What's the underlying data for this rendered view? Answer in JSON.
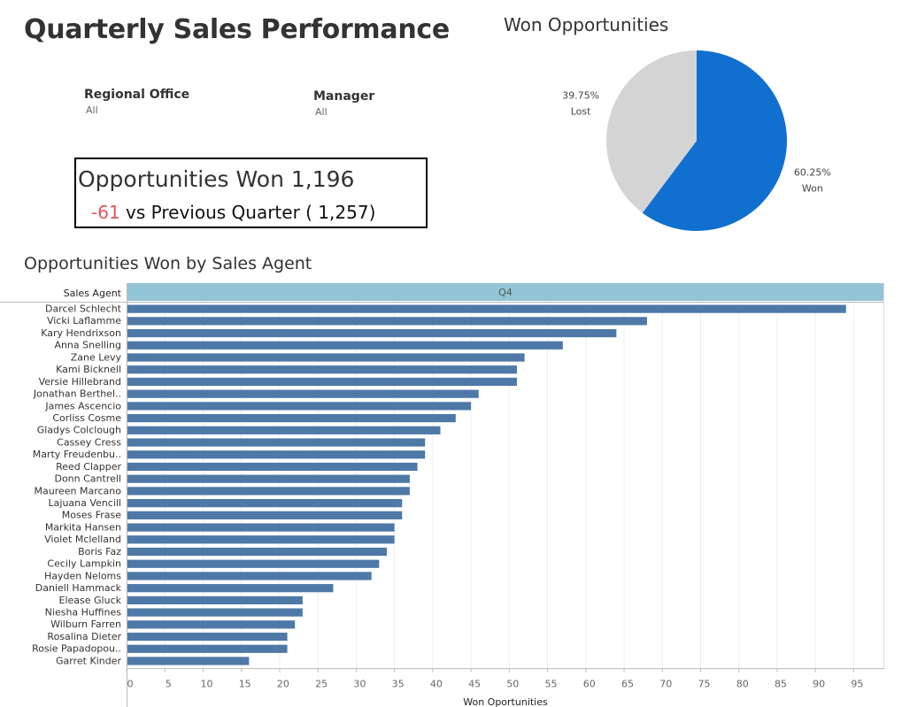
{
  "title": "Quarterly Sales Performance",
  "filters": [
    {
      "label": "Regional Office",
      "value": "All"
    },
    {
      "label": "Manager",
      "value": "All"
    }
  ],
  "kpi": {
    "label": "Opportunities Won",
    "value": "1,196",
    "delta": "-61",
    "comparison": "vs Previous Quarter ( 1,257)"
  },
  "colors": {
    "won": "#1170cf",
    "lost": "#d4d4d4",
    "bar": "#4e79a7",
    "header": "#92c5d6",
    "negative": "#e15759"
  },
  "chart_data": [
    {
      "type": "pie",
      "title": "Won Opportunities",
      "slices": [
        {
          "name": "Won",
          "value": 60.25,
          "label": "60.25%"
        },
        {
          "name": "Lost",
          "value": 39.75,
          "label": "39.75%"
        }
      ]
    },
    {
      "type": "bar",
      "orientation": "horizontal",
      "title": "Opportunities Won by Sales Agent",
      "row_header": "Sales Agent",
      "column_header": "Q4",
      "xlabel": "Won Oportunities",
      "xlim": [
        0,
        99
      ],
      "xticks": [
        0,
        5,
        10,
        15,
        20,
        25,
        30,
        35,
        40,
        45,
        50,
        55,
        60,
        65,
        70,
        75,
        80,
        85,
        90,
        95
      ],
      "grid": true,
      "categories": [
        "Darcel Schlecht",
        "Vicki Laflamme",
        "Kary Hendrixson",
        "Anna Snelling",
        "Zane Levy",
        "Kami Bicknell",
        "Versie Hillebrand",
        "Jonathan Berthel..",
        "James Ascencio",
        "Corliss Cosme",
        "Gladys Colclough",
        "Cassey Cress",
        "Marty Freudenbu..",
        "Reed Clapper",
        "Donn Cantrell",
        "Maureen Marcano",
        "Lajuana Vencill",
        "Moses Frase",
        "Markita Hansen",
        "Violet Mclelland",
        "Boris Faz",
        "Cecily Lampkin",
        "Hayden Neloms",
        "Daniell Hammack",
        "Elease Gluck",
        "Niesha Huffines",
        "Wilburn Farren",
        "Rosalina Dieter",
        "Rosie Papadopou..",
        "Garret Kinder"
      ],
      "values": [
        94,
        68,
        64,
        57,
        52,
        51,
        51,
        46,
        45,
        43,
        41,
        39,
        39,
        38,
        37,
        37,
        36,
        36,
        35,
        35,
        34,
        33,
        32,
        27,
        23,
        23,
        22,
        21,
        21,
        16
      ]
    }
  ]
}
